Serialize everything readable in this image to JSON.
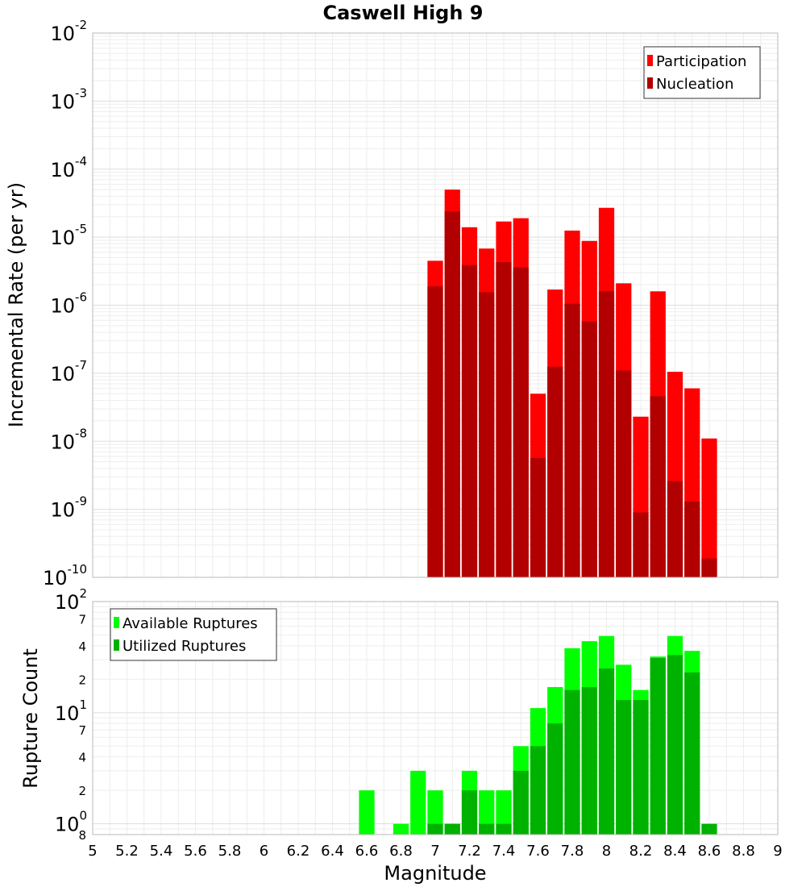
{
  "chart_data": [
    {
      "type": "bar",
      "title": "Caswell High 9",
      "xlabel": "",
      "ylabel": "Incremental Rate (per yr)",
      "yscale": "log",
      "ylim": [
        1e-10,
        0.01
      ],
      "y_ticks": [
        {
          "base": "10",
          "exp": "-10",
          "value": 1e-10
        },
        {
          "base": "10",
          "exp": "-9",
          "value": 1e-09
        },
        {
          "base": "10",
          "exp": "-8",
          "value": 1e-08
        },
        {
          "base": "10",
          "exp": "-7",
          "value": 1e-07
        },
        {
          "base": "10",
          "exp": "-6",
          "value": 1e-06
        },
        {
          "base": "10",
          "exp": "-5",
          "value": 1e-05
        },
        {
          "base": "10",
          "exp": "-4",
          "value": 0.0001
        },
        {
          "base": "10",
          "exp": "-3",
          "value": 0.001
        },
        {
          "base": "10",
          "exp": "-2",
          "value": 0.01
        }
      ],
      "xlim": [
        5,
        9
      ],
      "grid": true,
      "legend_position": "top-right",
      "colors": {
        "Participation": "#ff0000",
        "Nucleation": "#b20000"
      },
      "x": [
        7.0,
        7.1,
        7.2,
        7.3,
        7.4,
        7.5,
        7.6,
        7.7,
        7.8,
        7.9,
        8.0,
        8.1,
        8.2,
        8.3,
        8.4,
        8.5,
        8.6
      ],
      "series": [
        {
          "name": "Participation",
          "values": [
            4.5e-06,
            5e-05,
            1.4e-05,
            6.8e-06,
            1.7e-05,
            1.9e-05,
            5e-08,
            1.7e-06,
            1.25e-05,
            8.8e-06,
            2.7e-05,
            2.1e-06,
            2.3e-08,
            1.6e-06,
            1.05e-07,
            6e-08,
            1.1e-08
          ]
        },
        {
          "name": "Nucleation",
          "values": [
            1.9e-06,
            2.4e-05,
            3.9e-06,
            1.55e-06,
            4.3e-06,
            3.6e-06,
            5.7e-09,
            1.25e-07,
            1.05e-06,
            5.8e-07,
            1.6e-06,
            1.1e-07,
            9e-10,
            4.6e-08,
            2.6e-09,
            1.3e-09,
            1.9e-10
          ]
        }
      ]
    },
    {
      "type": "bar",
      "title": "",
      "xlabel": "Magnitude",
      "ylabel": "Rupture Count",
      "yscale": "log",
      "ylim": [
        0.8,
        100
      ],
      "y_ticks": [
        {
          "base": "10",
          "exp": "0",
          "value": 1
        },
        {
          "base": "10",
          "exp": "1",
          "value": 10
        },
        {
          "base": "10",
          "exp": "2",
          "value": 100
        }
      ],
      "y_minor_labels": [
        {
          "label": "8",
          "value": 0.8
        },
        {
          "label": "2",
          "value": 2
        },
        {
          "label": "4",
          "value": 4
        },
        {
          "label": "7",
          "value": 7
        },
        {
          "label": "2",
          "value": 20
        },
        {
          "label": "4",
          "value": 40
        },
        {
          "label": "7",
          "value": 70
        }
      ],
      "xlim": [
        5,
        9
      ],
      "x_ticks": [
        "5",
        "5.2",
        "5.4",
        "5.6",
        "5.8",
        "6",
        "6.2",
        "6.4",
        "6.6",
        "6.8",
        "7",
        "7.2",
        "7.4",
        "7.6",
        "7.8",
        "8",
        "8.2",
        "8.4",
        "8.6",
        "8.8",
        "9"
      ],
      "grid": true,
      "legend_position": "top-left",
      "colors": {
        "Available Ruptures": "#00ff00",
        "Utilized Ruptures": "#00b200"
      },
      "x": [
        6.6,
        6.7,
        6.8,
        6.9,
        7.0,
        7.1,
        7.2,
        7.3,
        7.4,
        7.5,
        7.6,
        7.7,
        7.8,
        7.9,
        8.0,
        8.1,
        8.2,
        8.3,
        8.4,
        8.5,
        8.6
      ],
      "series": [
        {
          "name": "Available Ruptures",
          "values": [
            2,
            0,
            1,
            3,
            2,
            1,
            3,
            2,
            2,
            5,
            11,
            17,
            38,
            44,
            49,
            27,
            16,
            32,
            49,
            36,
            0
          ]
        },
        {
          "name": "Utilized Ruptures",
          "values": [
            0,
            0,
            0,
            0,
            1,
            1,
            2,
            1,
            1,
            3,
            5,
            8,
            16,
            17,
            25,
            13,
            13,
            31,
            33,
            23,
            1
          ]
        }
      ]
    }
  ]
}
